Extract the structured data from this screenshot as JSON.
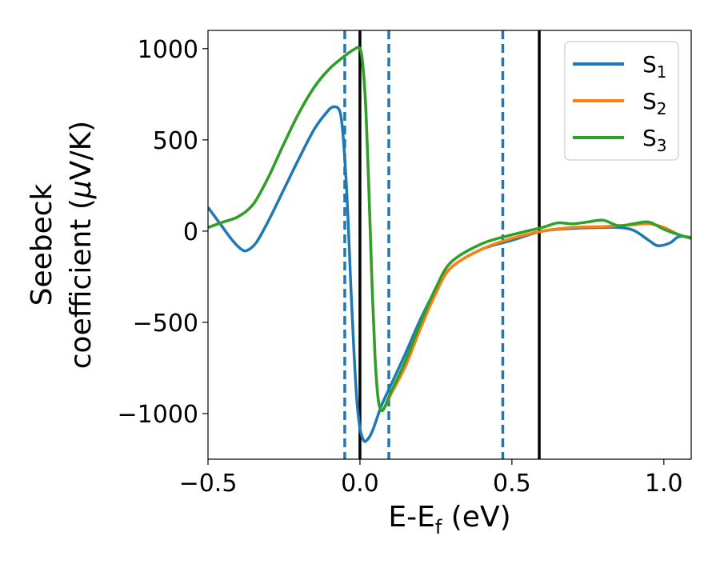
{
  "chart_data": {
    "type": "line",
    "title": "",
    "xlabel": "E-E",
    "xlabel_sub": "f",
    "xlabel_unit": " (eV)",
    "ylabel_line1": "Seebeck",
    "ylabel_line2": "coefficient  (",
    "ylabel_mu": "μ",
    "ylabel_unit": "V/K)",
    "xlim": [
      -0.5,
      1.09
    ],
    "ylim": [
      -1250,
      1100
    ],
    "xticks": [
      {
        "value": -0.5,
        "label": "−0.5"
      },
      {
        "value": 0.0,
        "label": "0.0"
      },
      {
        "value": 0.5,
        "label": "0.5"
      },
      {
        "value": 1.0,
        "label": "1.0"
      }
    ],
    "yticks": [
      {
        "value": 1000,
        "label": "1000"
      },
      {
        "value": 500,
        "label": "500"
      },
      {
        "value": 0,
        "label": "0"
      },
      {
        "value": -500,
        "label": "−500"
      },
      {
        "value": -1000,
        "label": "−1000"
      }
    ],
    "legend_position": "top-right",
    "vlines": [
      {
        "x": -0.05,
        "style": "dashed",
        "color": "#1f77b4"
      },
      {
        "x": 0.095,
        "style": "dashed",
        "color": "#1f77b4"
      },
      {
        "x": 0.47,
        "style": "dashed",
        "color": "#1f77b4"
      },
      {
        "x": 0.0,
        "style": "solid",
        "color": "#000000"
      },
      {
        "x": 0.59,
        "style": "solid",
        "color": "#000000"
      }
    ],
    "series": [
      {
        "name": "S",
        "sub": "1",
        "color": "#1f77b4",
        "x": [
          -0.5,
          -0.46,
          -0.42,
          -0.39,
          -0.37,
          -0.34,
          -0.3,
          -0.25,
          -0.2,
          -0.15,
          -0.11,
          -0.09,
          -0.07,
          -0.06,
          -0.05,
          -0.04,
          -0.03,
          -0.02,
          -0.01,
          0.0,
          0.01,
          0.02,
          0.04,
          0.07,
          0.1,
          0.15,
          0.2,
          0.25,
          0.3,
          0.4,
          0.5,
          0.6,
          0.7,
          0.8,
          0.85,
          0.9,
          0.95,
          0.98,
          1.02,
          1.05,
          1.09
        ],
        "y": [
          130,
          40,
          -50,
          -100,
          -105,
          -60,
          60,
          230,
          400,
          560,
          650,
          680,
          670,
          600,
          400,
          100,
          -300,
          -650,
          -930,
          -1080,
          -1140,
          -1150,
          -1100,
          -960,
          -850,
          -670,
          -480,
          -320,
          -200,
          -100,
          -50,
          0,
          15,
          20,
          20,
          5,
          -50,
          -80,
          -65,
          -30,
          -35
        ]
      },
      {
        "name": "S",
        "sub": "2",
        "color": "#ff7f0e",
        "x": [
          -0.5,
          -0.45,
          -0.4,
          -0.35,
          -0.3,
          -0.25,
          -0.2,
          -0.15,
          -0.1,
          -0.05,
          -0.02,
          0.0,
          0.01,
          0.02,
          0.03,
          0.04,
          0.05,
          0.06,
          0.07,
          0.08,
          0.1,
          0.15,
          0.2,
          0.25,
          0.3,
          0.4,
          0.5,
          0.6,
          0.7,
          0.8,
          0.85,
          0.9,
          0.95,
          1.0,
          1.05,
          1.09
        ],
        "y": [
          20,
          50,
          80,
          150,
          300,
          480,
          650,
          790,
          890,
          960,
          995,
          1000,
          900,
          650,
          200,
          -300,
          -700,
          -920,
          -980,
          -970,
          -900,
          -740,
          -530,
          -340,
          -200,
          -100,
          -40,
          0,
          20,
          25,
          30,
          35,
          40,
          20,
          -20,
          -40
        ]
      },
      {
        "name": "S",
        "sub": "3",
        "color": "#2ca02c",
        "x": [
          -0.5,
          -0.45,
          -0.4,
          -0.35,
          -0.3,
          -0.25,
          -0.2,
          -0.15,
          -0.1,
          -0.05,
          -0.02,
          0.0,
          0.01,
          0.02,
          0.03,
          0.04,
          0.05,
          0.06,
          0.07,
          0.08,
          0.1,
          0.15,
          0.2,
          0.25,
          0.3,
          0.4,
          0.5,
          0.6,
          0.65,
          0.7,
          0.75,
          0.8,
          0.85,
          0.9,
          0.95,
          1.0,
          1.05,
          1.09
        ],
        "y": [
          20,
          50,
          80,
          150,
          300,
          480,
          650,
          790,
          890,
          960,
          995,
          1000,
          900,
          650,
          200,
          -300,
          -700,
          -920,
          -980,
          -970,
          -890,
          -710,
          -500,
          -310,
          -170,
          -70,
          -20,
          20,
          45,
          40,
          50,
          60,
          30,
          40,
          50,
          10,
          -20,
          -40
        ]
      }
    ]
  }
}
